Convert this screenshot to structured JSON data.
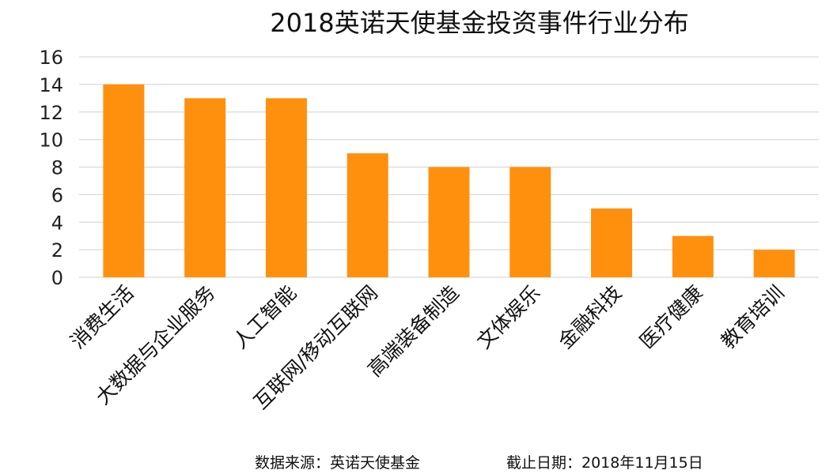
{
  "chart_data": {
    "type": "bar",
    "title": "2018英诺天使基金投资事件行业分布",
    "categories": [
      "消费生活",
      "大数据与企业服务",
      "人工智能",
      "互联网/移动互联网",
      "高端装备制造",
      "文体娱乐",
      "金融科技",
      "医疗健康",
      "教育培训"
    ],
    "values": [
      14,
      13,
      13,
      9,
      8,
      8,
      5,
      3,
      2
    ],
    "xlabel": "",
    "ylabel": "",
    "ylim": [
      0,
      16
    ],
    "yticks": [
      0,
      2,
      4,
      6,
      8,
      10,
      12,
      14,
      16
    ],
    "grid": true,
    "bar_color": "#FF900E"
  },
  "footer": {
    "source": "数据来源：英诺天使基金",
    "date": "截止日期：2018年11月15日"
  }
}
